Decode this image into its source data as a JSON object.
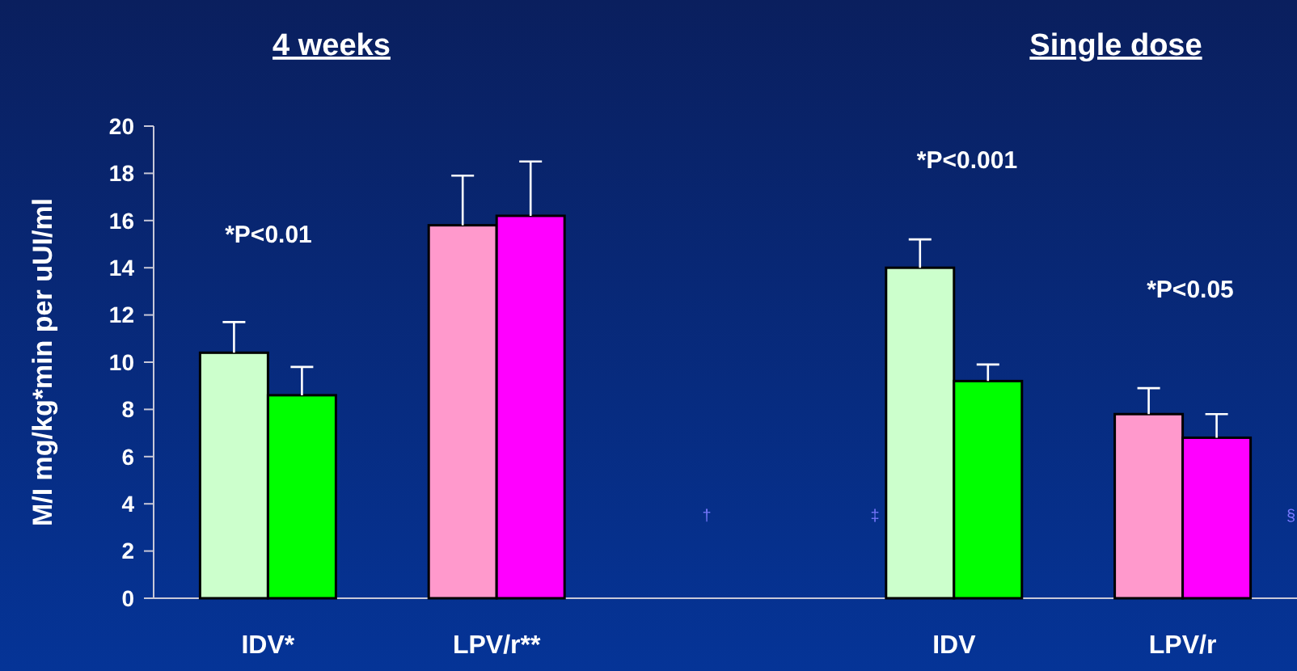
{
  "chart_data": {
    "type": "bar",
    "title": "4 weeks",
    "subtitle": "Single dose",
    "ylabel": "M/I mg/kg*min per uUI/ml",
    "categories": [
      "IDV*",
      "LPV/r**",
      null,
      "IDV",
      "LPV/r"
    ],
    "series": [
      {
        "colors": [
          "#ccffcc",
          "#ff99cc",
          null,
          "#ccffcc",
          "#ff99cc"
        ],
        "values": [
          10.4,
          15.8,
          null,
          14.0,
          7.8
        ],
        "errors": [
          [
            10.4,
            11.7
          ],
          [
            15.8,
            17.9
          ],
          null,
          [
            14.0,
            15.2
          ],
          [
            7.8,
            8.9
          ]
        ]
      },
      {
        "colors": [
          "#00ff00",
          "#ff00ff",
          null,
          "#00ff00",
          "#ff00ff"
        ],
        "values": [
          8.6,
          16.2,
          null,
          9.2,
          6.8
        ],
        "errors": [
          [
            8.6,
            9.8
          ],
          [
            16.2,
            18.5
          ],
          null,
          [
            9.2,
            9.9
          ],
          [
            6.8,
            7.8
          ]
        ]
      }
    ],
    "ylim": [
      0,
      20
    ],
    "yticks": [
      0,
      2,
      4,
      6,
      8,
      10,
      12,
      14,
      16,
      18,
      20
    ],
    "grid": false,
    "legend": false,
    "annotations": [
      "*P<0.01",
      "*P<0.001",
      "*P<0.05",
      "†",
      "‡",
      "§"
    ]
  }
}
